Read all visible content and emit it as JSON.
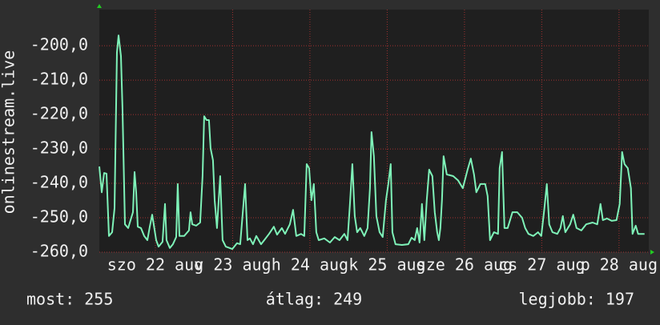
{
  "chart_data": {
    "type": "line",
    "y_label": "onlinestream.live",
    "color": "#7ef2b8",
    "grid": true,
    "grid_color": "#a03030",
    "ylim": [
      -260,
      -189.5
    ],
    "yticks": [
      {
        "value": -260,
        "label": "-260,0"
      },
      {
        "value": -250,
        "label": "-250,0"
      },
      {
        "value": -240,
        "label": "-240,0"
      },
      {
        "value": -230,
        "label": "-230,0"
      },
      {
        "value": -220,
        "label": "-220,0"
      },
      {
        "value": -210,
        "label": "-210,0"
      },
      {
        "value": -200,
        "label": "-200,0"
      }
    ],
    "xlim": [
      21.775,
      28.885
    ],
    "xticks": [
      {
        "value": 22.5,
        "label": "szo 22 aug"
      },
      {
        "value": 23.5,
        "label": "v 23 aug"
      },
      {
        "value": 24.5,
        "label": "h 24 aug"
      },
      {
        "value": 25.5,
        "label": "k 25 aug"
      },
      {
        "value": 26.5,
        "label": "sze 26 aug"
      },
      {
        "value": 27.5,
        "label": "cs 27 aug"
      },
      {
        "value": 28.5,
        "label": "p 28 aug"
      }
    ],
    "x": [
      21.775,
      21.806,
      21.837,
      21.868,
      21.899,
      21.941,
      21.972,
      22.003,
      22.024,
      22.055,
      22.075,
      22.107,
      22.148,
      22.21,
      22.231,
      22.252,
      22.272,
      22.314,
      22.355,
      22.397,
      22.428,
      22.459,
      22.479,
      22.511,
      22.542,
      22.593,
      22.625,
      22.645,
      22.687,
      22.728,
      22.77,
      22.79,
      22.811,
      22.873,
      22.935,
      22.956,
      22.977,
      23.029,
      23.08,
      23.111,
      23.132,
      23.163,
      23.194,
      23.215,
      23.246,
      23.267,
      23.298,
      23.339,
      23.37,
      23.412,
      23.495,
      23.557,
      23.598,
      23.661,
      23.692,
      23.723,
      23.764,
      23.806,
      23.868,
      23.909,
      23.971,
      24.033,
      24.075,
      24.137,
      24.179,
      24.241,
      24.282,
      24.324,
      24.386,
      24.427,
      24.458,
      24.489,
      24.52,
      24.551,
      24.583,
      24.614,
      24.686,
      24.759,
      24.821,
      24.883,
      24.945,
      24.987,
      25.018,
      25.049,
      25.08,
      25.111,
      25.152,
      25.204,
      25.246,
      25.277,
      25.297,
      25.328,
      25.36,
      25.401,
      25.442,
      25.484,
      25.515,
      25.546,
      25.567,
      25.608,
      25.691,
      25.774,
      25.815,
      25.857,
      25.888,
      25.919,
      25.95,
      25.981,
      26.012,
      26.043,
      26.085,
      26.116,
      26.147,
      26.168,
      26.188,
      26.209,
      26.23,
      26.271,
      26.354,
      26.416,
      26.478,
      26.541,
      26.582,
      26.623,
      26.654,
      26.706,
      26.769,
      26.8,
      26.831,
      26.882,
      26.934,
      26.955,
      26.986,
      27.017,
      27.059,
      27.121,
      27.183,
      27.245,
      27.286,
      27.328,
      27.39,
      27.452,
      27.494,
      27.535,
      27.566,
      27.597,
      27.639,
      27.701,
      27.742,
      27.773,
      27.805,
      27.867,
      27.908,
      27.95,
      28.012,
      28.074,
      28.157,
      28.219,
      28.26,
      28.291,
      28.343,
      28.405,
      28.467,
      28.509,
      28.54,
      28.571,
      28.613,
      28.654,
      28.675,
      28.716,
      28.747,
      28.83
    ],
    "values": [
      -235.1,
      -242.6,
      -237.0,
      -237.2,
      -255.3,
      -254.2,
      -247.2,
      -201.9,
      -197.0,
      -203.0,
      -218.1,
      -251.9,
      -253.0,
      -248.4,
      -236.7,
      -242.6,
      -252.6,
      -253.0,
      -255.3,
      -256.5,
      -252.6,
      -249.1,
      -251.9,
      -256.5,
      -258.4,
      -257.0,
      -246.0,
      -256.5,
      -258.8,
      -257.7,
      -255.6,
      -240.2,
      -255.3,
      -255.3,
      -253.7,
      -248.4,
      -251.9,
      -252.3,
      -251.4,
      -237.9,
      -220.5,
      -221.6,
      -221.6,
      -229.8,
      -233.3,
      -244.9,
      -253.0,
      -237.9,
      -256.5,
      -258.4,
      -259.1,
      -257.4,
      -257.7,
      -240.2,
      -256.5,
      -256.0,
      -257.7,
      -255.3,
      -257.7,
      -256.5,
      -254.7,
      -252.6,
      -254.9,
      -253.0,
      -254.7,
      -251.9,
      -247.7,
      -255.3,
      -254.7,
      -255.3,
      -234.4,
      -235.6,
      -244.9,
      -240.2,
      -254.2,
      -256.5,
      -256.0,
      -257.2,
      -255.6,
      -256.5,
      -254.7,
      -256.5,
      -246.0,
      -234.4,
      -249.5,
      -254.2,
      -253.0,
      -255.3,
      -253.0,
      -241.4,
      -225.1,
      -232.1,
      -249.5,
      -254.2,
      -255.6,
      -244.9,
      -240.2,
      -234.4,
      -254.2,
      -257.7,
      -257.9,
      -257.7,
      -255.8,
      -256.5,
      -253.0,
      -257.2,
      -246.0,
      -256.5,
      -244.9,
      -236.0,
      -237.9,
      -248.4,
      -254.2,
      -256.5,
      -253.0,
      -244.9,
      -232.1,
      -237.4,
      -237.9,
      -239.1,
      -241.4,
      -236.0,
      -232.8,
      -237.4,
      -242.6,
      -240.2,
      -240.2,
      -243.7,
      -256.5,
      -254.2,
      -254.7,
      -235.6,
      -230.9,
      -253.0,
      -253.0,
      -248.4,
      -248.4,
      -250.0,
      -253.0,
      -254.7,
      -255.3,
      -254.2,
      -255.3,
      -247.2,
      -240.2,
      -251.9,
      -254.2,
      -254.7,
      -253.0,
      -249.5,
      -254.2,
      -251.9,
      -249.1,
      -253.0,
      -253.7,
      -251.9,
      -251.4,
      -251.9,
      -246.0,
      -250.7,
      -250.2,
      -250.9,
      -250.7,
      -246.0,
      -230.9,
      -234.4,
      -235.6,
      -241.4,
      -254.7,
      -252.3,
      -254.7,
      -254.7
    ],
    "stats": [
      "most: 255",
      "átlag: 249",
      "legjobb: 197"
    ]
  }
}
